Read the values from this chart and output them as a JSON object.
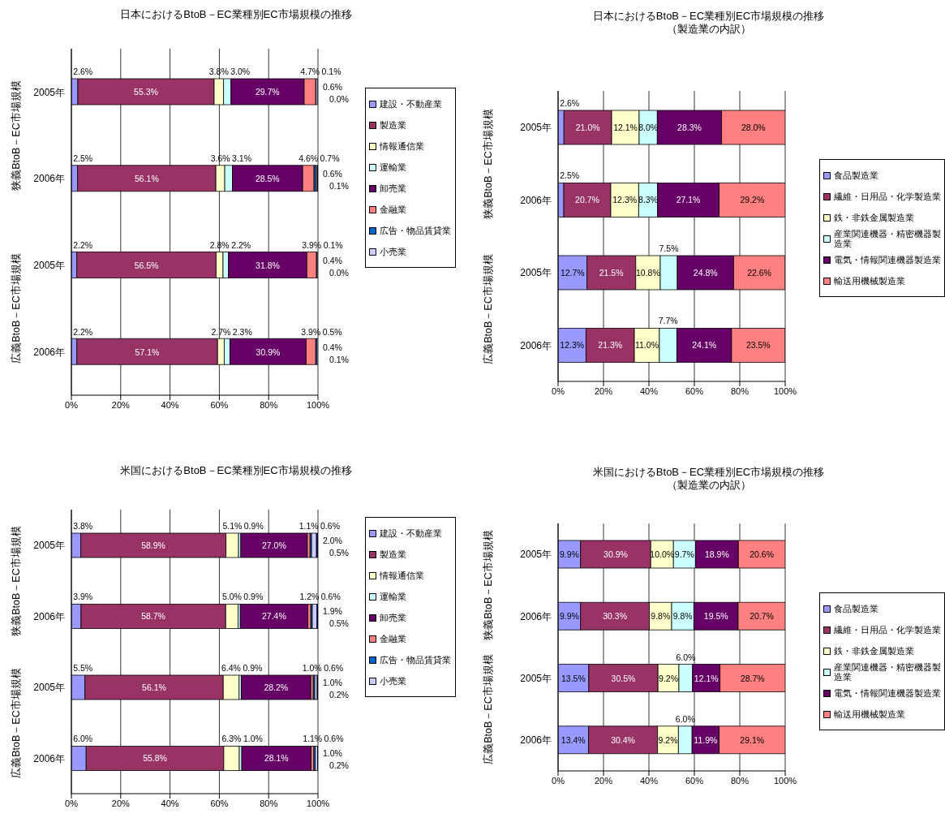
{
  "chart_data": [
    {
      "type": "bar",
      "orientation": "horizontal",
      "stacked": true,
      "title": "日本におけるBtoB－EC業種別EC市場規模の推移",
      "categories": [
        "2005年",
        "2006年",
        "2005年",
        "2006年"
      ],
      "annotations": [
        "狭義BtoB－EC市場規模",
        "広義BtoB－EC市場規模"
      ],
      "xlim": [
        0,
        100
      ],
      "xticks": [
        {
          "value": 0,
          "label": "0%"
        },
        {
          "value": 20,
          "label": "20%"
        },
        {
          "value": 40,
          "label": "40%"
        },
        {
          "value": 60,
          "label": "60%"
        },
        {
          "value": 80,
          "label": "80%"
        },
        {
          "value": 100,
          "label": "100%"
        }
      ],
      "grid": "x",
      "legend": "right",
      "series": [
        {
          "name": "建設・不動産業",
          "color": "#9999ff",
          "values": [
            2.6,
            2.5,
            2.2,
            2.2
          ],
          "value_labels": [
            "2.6%",
            "2.5%",
            "2.2%",
            "2.2%"
          ]
        },
        {
          "name": "製造業",
          "color": "#993366",
          "values": [
            55.3,
            56.1,
            56.5,
            57.1
          ],
          "value_labels": [
            "55.3%",
            "56.1%",
            "56.5%",
            "57.1%"
          ]
        },
        {
          "name": "情報通信業",
          "color": "#ffffcc",
          "values": [
            3.8,
            3.6,
            2.8,
            2.7
          ],
          "value_labels": [
            "3.8%",
            "3.6%",
            "2.8%",
            "2.7%"
          ]
        },
        {
          "name": "運輸業",
          "color": "#ccffff",
          "values": [
            3.0,
            3.1,
            2.2,
            2.3
          ],
          "value_labels": [
            "3.0%",
            "3.1%",
            "2.2%",
            "2.3%"
          ]
        },
        {
          "name": "卸売業",
          "color": "#660066",
          "values": [
            29.7,
            28.5,
            31.8,
            30.9
          ],
          "value_labels": [
            "29.7%",
            "28.5%",
            "31.8%",
            "30.9%"
          ]
        },
        {
          "name": "金融業",
          "color": "#ff8080",
          "values": [
            4.7,
            4.6,
            3.9,
            3.9
          ],
          "value_labels": [
            "4.7%",
            "4.6%",
            "3.9%",
            "3.9%"
          ]
        },
        {
          "name": "広告・物品賃貸業",
          "color": "#0066cc",
          "values": [
            0.1,
            0.7,
            0.1,
            0.5
          ],
          "value_labels": [
            "0.1%",
            "0.7%",
            "0.1%",
            "0.5%"
          ]
        },
        {
          "name": "小売業",
          "color": "#ccccff",
          "values": [
            0.6,
            0.6,
            0.4,
            0.4
          ],
          "value_labels": [
            "0.6%",
            "0.6%",
            "0.4%",
            "0.4%"
          ]
        },
        {
          "color": "#000080",
          "values": [
            0.0,
            0.1,
            0.0,
            0.1
          ],
          "value_labels": [
            "0.0%",
            "0.1%",
            "0.0%",
            "0.1%"
          ]
        }
      ]
    },
    {
      "type": "bar",
      "orientation": "horizontal",
      "stacked": true,
      "title": "日本におけるBtoB－EC業種別EC市場規模の推移",
      "subtitle": "（製造業の内訳）",
      "categories": [
        "2005年",
        "2006年",
        "2005年",
        "2006年"
      ],
      "annotations": [
        "狭義BtoB－EC市場規模",
        "広義BtoB－EC市場規模"
      ],
      "xlim": [
        0,
        100
      ],
      "xticks": [
        {
          "value": 0,
          "label": "0%"
        },
        {
          "value": 20,
          "label": "20%"
        },
        {
          "value": 40,
          "label": "40%"
        },
        {
          "value": 60,
          "label": "60%"
        },
        {
          "value": 80,
          "label": "80%"
        },
        {
          "value": 100,
          "label": "100%"
        }
      ],
      "grid": "x",
      "legend": "right",
      "series": [
        {
          "name": "食品製造業",
          "color": "#9999ff",
          "values": [
            2.6,
            2.5,
            12.7,
            12.3
          ],
          "value_labels": [
            "2.6%",
            "2.5%",
            "12.7%",
            "12.3%"
          ]
        },
        {
          "name": "繊維・日用品・化学製造業",
          "color": "#993366",
          "values": [
            21.0,
            20.7,
            21.5,
            21.3
          ],
          "value_labels": [
            "21.0%",
            "20.7%",
            "21.5%",
            "21.3%"
          ]
        },
        {
          "name": "鉄・非鉄金属製造業",
          "color": "#ffffcc",
          "values": [
            12.1,
            12.3,
            10.8,
            11.0
          ],
          "value_labels": [
            "12.1%",
            "12.3%",
            "10.8%",
            "11.0%"
          ]
        },
        {
          "name": "産業関連機器・精密機器製造業",
          "color": "#ccffff",
          "values": [
            8.0,
            8.3,
            7.5,
            7.7
          ],
          "value_labels": [
            "8.0%",
            "8.3%",
            "7.5%",
            "7.7%"
          ]
        },
        {
          "name": "電気・情報関連機器製造業",
          "color": "#660066",
          "values": [
            28.3,
            27.1,
            24.8,
            24.1
          ],
          "value_labels": [
            "28.3%",
            "27.1%",
            "24.8%",
            "24.1%"
          ]
        },
        {
          "name": "輸送用機械製造業",
          "color": "#ff8080",
          "values": [
            28.0,
            29.2,
            22.6,
            23.5
          ],
          "value_labels": [
            "28.0%",
            "29.2%",
            "22.6%",
            "23.5%"
          ]
        }
      ]
    },
    {
      "type": "bar",
      "orientation": "horizontal",
      "stacked": true,
      "title": "米国におけるBtoB－EC業種別EC市場規模の推移",
      "categories": [
        "2005年",
        "2006年",
        "2005年",
        "2006年"
      ],
      "annotations": [
        "狭義BtoB－EC市場規模",
        "広義BtoB－EC市場規模"
      ],
      "xlim": [
        0,
        100
      ],
      "xticks": [
        {
          "value": 0,
          "label": "0%"
        },
        {
          "value": 20,
          "label": "20%"
        },
        {
          "value": 40,
          "label": "40%"
        },
        {
          "value": 60,
          "label": "60%"
        },
        {
          "value": 80,
          "label": "80%"
        },
        {
          "value": 100,
          "label": "100%"
        }
      ],
      "grid": "x",
      "legend": "right",
      "series": [
        {
          "name": "建設・不動産業",
          "color": "#9999ff",
          "values": [
            3.8,
            3.9,
            5.5,
            6.0
          ],
          "value_labels": [
            "3.8%",
            "3.9%",
            "5.5%",
            "6.0%"
          ]
        },
        {
          "name": "製造業",
          "color": "#993366",
          "values": [
            58.9,
            58.7,
            56.1,
            55.8
          ],
          "value_labels": [
            "58.9%",
            "58.7%",
            "56.1%",
            "55.8%"
          ]
        },
        {
          "name": "情報通信業",
          "color": "#ffffcc",
          "values": [
            5.1,
            5.0,
            6.4,
            6.3
          ],
          "value_labels": [
            "5.1%",
            "5.0%",
            "6.4%",
            "6.3%"
          ]
        },
        {
          "name": "運輸業",
          "color": "#ccffff",
          "values": [
            0.9,
            0.9,
            0.9,
            1.0
          ],
          "value_labels": [
            "0.9%",
            "0.9%",
            "0.9%",
            "1.0%"
          ]
        },
        {
          "name": "卸売業",
          "color": "#660066",
          "values": [
            27.0,
            27.4,
            28.2,
            28.1
          ],
          "value_labels": [
            "27.0%",
            "27.4%",
            "28.2%",
            "28.1%"
          ]
        },
        {
          "name": "金融業",
          "color": "#ff8080",
          "values": [
            1.1,
            1.2,
            1.0,
            1.1
          ],
          "value_labels": [
            "1.1%",
            "1.2%",
            "1.0%",
            "1.1%"
          ]
        },
        {
          "name": "広告・物品賃貸業",
          "color": "#0066cc",
          "values": [
            0.6,
            0.6,
            0.6,
            0.6
          ],
          "value_labels": [
            "0.6%",
            "0.6%",
            "0.6%",
            "0.6%"
          ]
        },
        {
          "name": "小売業",
          "color": "#ccccff",
          "values": [
            2.0,
            1.9,
            1.0,
            1.0
          ],
          "value_labels": [
            "2.0%",
            "1.9%",
            "1.0%",
            "1.0%"
          ]
        },
        {
          "color": "#000080",
          "values": [
            0.5,
            0.5,
            0.2,
            0.2
          ],
          "value_labels": [
            "0.5%",
            "0.5%",
            "0.2%",
            "0.2%"
          ]
        }
      ]
    },
    {
      "type": "bar",
      "orientation": "horizontal",
      "stacked": true,
      "title": "米国におけるBtoB－EC業種別EC市場規模の推移",
      "subtitle": "（製造業の内訳）",
      "categories": [
        "2005年",
        "2006年",
        "2005年",
        "2006年"
      ],
      "annotations": [
        "狭義BtoB－EC市場規模",
        "広義BtoB－EC市場規模"
      ],
      "xlim": [
        0,
        100
      ],
      "xticks": [
        {
          "value": 0,
          "label": "0%"
        },
        {
          "value": 20,
          "label": "20%"
        },
        {
          "value": 40,
          "label": "40%"
        },
        {
          "value": 60,
          "label": "60%"
        },
        {
          "value": 80,
          "label": "80%"
        },
        {
          "value": 100,
          "label": "100%"
        }
      ],
      "grid": "x",
      "legend": "right",
      "series": [
        {
          "name": "食品製造業",
          "color": "#9999ff",
          "values": [
            9.9,
            9.9,
            13.5,
            13.4
          ],
          "value_labels": [
            "9.9%",
            "9.9%",
            "13.5%",
            "13.4%"
          ]
        },
        {
          "name": "繊維・日用品・化学製造業",
          "color": "#993366",
          "values": [
            30.9,
            30.3,
            30.5,
            30.4
          ],
          "value_labels": [
            "30.9%",
            "30.3%",
            "30.5%",
            "30.4%"
          ]
        },
        {
          "name": "鉄・非鉄金属製造業",
          "color": "#ffffcc",
          "values": [
            10.0,
            9.8,
            9.2,
            9.2
          ],
          "value_labels": [
            "10.0%",
            "9.8%",
            "9.2%",
            "9.2%"
          ]
        },
        {
          "name": "産業関連機器・精密機器製造業",
          "color": "#ccffff",
          "values": [
            9.7,
            9.8,
            6.0,
            6.0
          ],
          "value_labels": [
            "9.7%",
            "9.8%",
            "6.0%",
            "6.0%"
          ]
        },
        {
          "name": "電気・情報関連機器製造業",
          "color": "#660066",
          "values": [
            18.9,
            19.5,
            12.1,
            11.9
          ],
          "value_labels": [
            "18.9%",
            "19.5%",
            "12.1%",
            "11.9%"
          ]
        },
        {
          "name": "輸送用機械製造業",
          "color": "#ff8080",
          "values": [
            20.6,
            20.7,
            28.7,
            29.1
          ],
          "value_labels": [
            "20.6%",
            "20.7%",
            "28.7%",
            "29.1%"
          ]
        }
      ]
    }
  ]
}
